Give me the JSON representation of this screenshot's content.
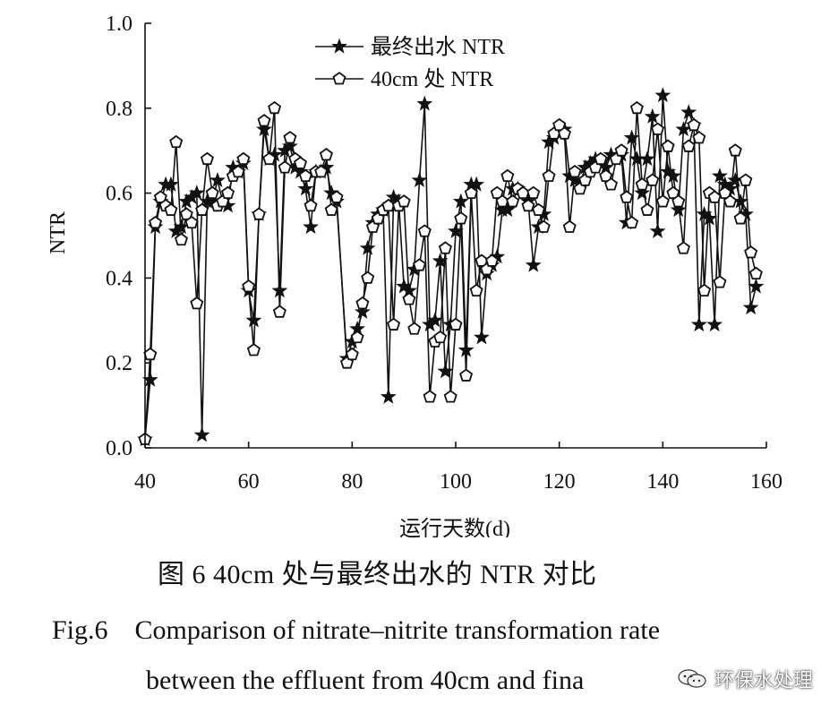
{
  "chart_data": {
    "type": "line",
    "xlabel": "运行天数(d)",
    "ylabel": "NTR",
    "xlim": [
      40,
      160
    ],
    "ylim": [
      0,
      1.0
    ],
    "xticks": [
      40,
      60,
      80,
      100,
      120,
      140,
      160
    ],
    "xtick_labels": [
      "40",
      "60",
      "80",
      "100",
      "120",
      "140",
      "160"
    ],
    "yticks": [
      0,
      0.2,
      0.4,
      0.6,
      0.8,
      1.0
    ],
    "ytick_labels": [
      "0.0",
      "0.2",
      "0.4",
      "0.6",
      "0.8",
      "1.0"
    ],
    "legend_placement": "top-left",
    "grid": false,
    "series": [
      {
        "name": "最终出水 NTR",
        "marker": "star",
        "color": "#111111",
        "points": [
          [
            40,
            0.02
          ],
          [
            41,
            0.16
          ],
          [
            42,
            0.52
          ],
          [
            43,
            0.58
          ],
          [
            44,
            0.62
          ],
          [
            45,
            0.62
          ],
          [
            46,
            0.51
          ],
          [
            47,
            0.52
          ],
          [
            48,
            0.58
          ],
          [
            49,
            0.59
          ],
          [
            50,
            0.6
          ],
          [
            51,
            0.03
          ],
          [
            52,
            0.58
          ],
          [
            53,
            0.58
          ],
          [
            54,
            0.63
          ],
          [
            55,
            0.58
          ],
          [
            56,
            0.57
          ],
          [
            57,
            0.66
          ],
          [
            58,
            0.65
          ],
          [
            59,
            0.67
          ],
          [
            60,
            0.37
          ],
          [
            61,
            0.3
          ],
          [
            62,
            0.55
          ],
          [
            63,
            0.75
          ],
          [
            64,
            0.68
          ],
          [
            65,
            0.69
          ],
          [
            66,
            0.37
          ],
          [
            67,
            0.7
          ],
          [
            68,
            0.71
          ],
          [
            69,
            0.66
          ],
          [
            70,
            0.65
          ],
          [
            71,
            0.61
          ],
          [
            72,
            0.52
          ],
          [
            73,
            0.65
          ],
          [
            74,
            0.65
          ],
          [
            75,
            0.66
          ],
          [
            76,
            0.6
          ],
          [
            77,
            0.58
          ],
          [
            79,
            0.21
          ],
          [
            80,
            0.25
          ],
          [
            81,
            0.28
          ],
          [
            82,
            0.32
          ],
          [
            83,
            0.47
          ],
          [
            84,
            0.53
          ],
          [
            85,
            0.55
          ],
          [
            86,
            0.56
          ],
          [
            87,
            0.12
          ],
          [
            88,
            0.59
          ],
          [
            89,
            0.58
          ],
          [
            90,
            0.38
          ],
          [
            91,
            0.37
          ],
          [
            92,
            0.42
          ],
          [
            93,
            0.63
          ],
          [
            94,
            0.81
          ],
          [
            95,
            0.29
          ],
          [
            96,
            0.3
          ],
          [
            97,
            0.44
          ],
          [
            98,
            0.18
          ],
          [
            99,
            0.29
          ],
          [
            100,
            0.51
          ],
          [
            101,
            0.58
          ],
          [
            102,
            0.23
          ],
          [
            103,
            0.62
          ],
          [
            104,
            0.62
          ],
          [
            105,
            0.26
          ],
          [
            106,
            0.41
          ],
          [
            107,
            0.43
          ],
          [
            108,
            0.45
          ],
          [
            109,
            0.56
          ],
          [
            110,
            0.56
          ],
          [
            111,
            0.61
          ],
          [
            112,
            0.61
          ],
          [
            113,
            0.6
          ],
          [
            114,
            0.58
          ],
          [
            115,
            0.43
          ],
          [
            116,
            0.52
          ],
          [
            117,
            0.55
          ],
          [
            118,
            0.72
          ],
          [
            119,
            0.73
          ],
          [
            120,
            0.74
          ],
          [
            121,
            0.75
          ],
          [
            122,
            0.64
          ],
          [
            123,
            0.63
          ],
          [
            124,
            0.62
          ],
          [
            125,
            0.66
          ],
          [
            126,
            0.67
          ],
          [
            127,
            0.68
          ],
          [
            128,
            0.67
          ],
          [
            129,
            0.66
          ],
          [
            130,
            0.69
          ],
          [
            131,
            0.68
          ],
          [
            132,
            0.69
          ],
          [
            133,
            0.53
          ],
          [
            134,
            0.73
          ],
          [
            135,
            0.68
          ],
          [
            136,
            0.6
          ],
          [
            137,
            0.68
          ],
          [
            138,
            0.78
          ],
          [
            139,
            0.51
          ],
          [
            140,
            0.83
          ],
          [
            141,
            0.65
          ],
          [
            142,
            0.64
          ],
          [
            143,
            0.56
          ],
          [
            144,
            0.75
          ],
          [
            145,
            0.79
          ],
          [
            146,
            0.76
          ],
          [
            147,
            0.29
          ],
          [
            148,
            0.55
          ],
          [
            149,
            0.54
          ],
          [
            150,
            0.29
          ],
          [
            151,
            0.64
          ],
          [
            152,
            0.62
          ],
          [
            153,
            0.61
          ],
          [
            154,
            0.63
          ],
          [
            155,
            0.58
          ],
          [
            156,
            0.55
          ],
          [
            157,
            0.33
          ],
          [
            158,
            0.38
          ]
        ]
      },
      {
        "name": "40cm 处 NTR",
        "marker": "pentagon",
        "color": "#111111",
        "points": [
          [
            40,
            0.02
          ],
          [
            41,
            0.22
          ],
          [
            42,
            0.53
          ],
          [
            43,
            0.59
          ],
          [
            44,
            0.57
          ],
          [
            45,
            0.56
          ],
          [
            46,
            0.72
          ],
          [
            47,
            0.49
          ],
          [
            48,
            0.55
          ],
          [
            49,
            0.53
          ],
          [
            50,
            0.34
          ],
          [
            51,
            0.56
          ],
          [
            52,
            0.68
          ],
          [
            53,
            0.6
          ],
          [
            54,
            0.57
          ],
          [
            55,
            0.58
          ],
          [
            56,
            0.6
          ],
          [
            57,
            0.64
          ],
          [
            58,
            0.65
          ],
          [
            59,
            0.68
          ],
          [
            60,
            0.38
          ],
          [
            61,
            0.23
          ],
          [
            62,
            0.55
          ],
          [
            63,
            0.77
          ],
          [
            64,
            0.68
          ],
          [
            65,
            0.8
          ],
          [
            66,
            0.32
          ],
          [
            67,
            0.66
          ],
          [
            68,
            0.73
          ],
          [
            69,
            0.68
          ],
          [
            70,
            0.67
          ],
          [
            71,
            0.64
          ],
          [
            72,
            0.57
          ],
          [
            73,
            0.65
          ],
          [
            74,
            0.65
          ],
          [
            75,
            0.69
          ],
          [
            76,
            0.56
          ],
          [
            77,
            0.59
          ],
          [
            79,
            0.2
          ],
          [
            80,
            0.22
          ],
          [
            81,
            0.26
          ],
          [
            82,
            0.34
          ],
          [
            83,
            0.4
          ],
          [
            84,
            0.52
          ],
          [
            85,
            0.54
          ],
          [
            86,
            0.56
          ],
          [
            87,
            0.57
          ],
          [
            88,
            0.29
          ],
          [
            89,
            0.57
          ],
          [
            90,
            0.58
          ],
          [
            91,
            0.35
          ],
          [
            92,
            0.28
          ],
          [
            93,
            0.43
          ],
          [
            94,
            0.51
          ],
          [
            95,
            0.12
          ],
          [
            96,
            0.25
          ],
          [
            97,
            0.26
          ],
          [
            98,
            0.47
          ],
          [
            99,
            0.12
          ],
          [
            100,
            0.29
          ],
          [
            101,
            0.54
          ],
          [
            102,
            0.17
          ],
          [
            103,
            0.6
          ],
          [
            104,
            0.37
          ],
          [
            105,
            0.44
          ],
          [
            106,
            0.42
          ],
          [
            107,
            0.44
          ],
          [
            108,
            0.6
          ],
          [
            109,
            0.58
          ],
          [
            110,
            0.64
          ],
          [
            111,
            0.58
          ],
          [
            112,
            0.61
          ],
          [
            113,
            0.6
          ],
          [
            114,
            0.57
          ],
          [
            115,
            0.6
          ],
          [
            116,
            0.56
          ],
          [
            117,
            0.52
          ],
          [
            118,
            0.64
          ],
          [
            119,
            0.74
          ],
          [
            120,
            0.76
          ],
          [
            121,
            0.74
          ],
          [
            122,
            0.52
          ],
          [
            123,
            0.65
          ],
          [
            124,
            0.61
          ],
          [
            125,
            0.63
          ],
          [
            126,
            0.65
          ],
          [
            127,
            0.66
          ],
          [
            128,
            0.68
          ],
          [
            129,
            0.64
          ],
          [
            130,
            0.62
          ],
          [
            131,
            0.68
          ],
          [
            132,
            0.7
          ],
          [
            133,
            0.59
          ],
          [
            134,
            0.53
          ],
          [
            135,
            0.8
          ],
          [
            136,
            0.62
          ],
          [
            137,
            0.56
          ],
          [
            138,
            0.63
          ],
          [
            139,
            0.75
          ],
          [
            140,
            0.58
          ],
          [
            141,
            0.71
          ],
          [
            142,
            0.6
          ],
          [
            143,
            0.58
          ],
          [
            144,
            0.47
          ],
          [
            145,
            0.71
          ],
          [
            146,
            0.76
          ],
          [
            147,
            0.73
          ],
          [
            148,
            0.37
          ],
          [
            149,
            0.6
          ],
          [
            150,
            0.59
          ],
          [
            151,
            0.39
          ],
          [
            152,
            0.6
          ],
          [
            153,
            0.58
          ],
          [
            154,
            0.7
          ],
          [
            155,
            0.54
          ],
          [
            156,
            0.63
          ],
          [
            157,
            0.46
          ],
          [
            158,
            0.41
          ]
        ]
      }
    ]
  },
  "caption": {
    "chinese": "图 6    40cm 处与最终出水的 NTR 对比",
    "english": "Fig.6    Comparison of nitrate–nitrite transformation rate\n              between the effluent from 40cm and fina"
  },
  "watermark": {
    "text": "环保水处理",
    "icon": "wechat-icon"
  }
}
